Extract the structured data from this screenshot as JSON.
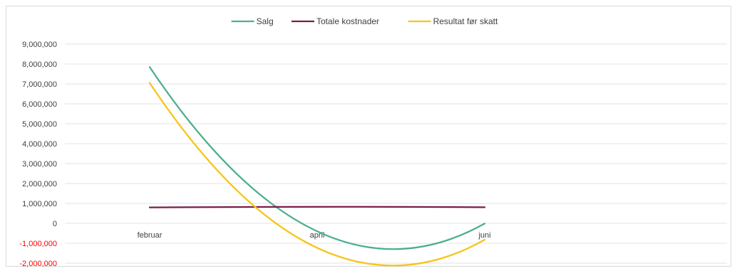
{
  "chart_data": {
    "type": "line",
    "title": "",
    "xlabel": "",
    "ylabel": "",
    "categories": [
      "februar",
      "april",
      "juni"
    ],
    "ylim": [
      -2000000,
      9000000
    ],
    "ytick_step": 1000000,
    "ytick_labels": [
      "9,000,000",
      "8,000,000",
      "7,000,000",
      "6,000,000",
      "5,000,000",
      "4,000,000",
      "3,000,000",
      "2,000,000",
      "1,000,000",
      "0",
      "-1,000,000",
      "-2,000,000"
    ],
    "negative_tick_color": "#ff0000",
    "grid": true,
    "legend_position": "top",
    "series": [
      {
        "name": "Salg",
        "color": "#4caf8e",
        "values": [
          7850000,
          -400000,
          -10000
        ]
      },
      {
        "name": "Totale kostnader",
        "color": "#7b1c4a",
        "values": [
          800000,
          830000,
          810000
        ]
      },
      {
        "name": "Resultat før skatt",
        "color": "#f5c518",
        "values": [
          7050000,
          -1230000,
          -820000
        ]
      }
    ]
  }
}
